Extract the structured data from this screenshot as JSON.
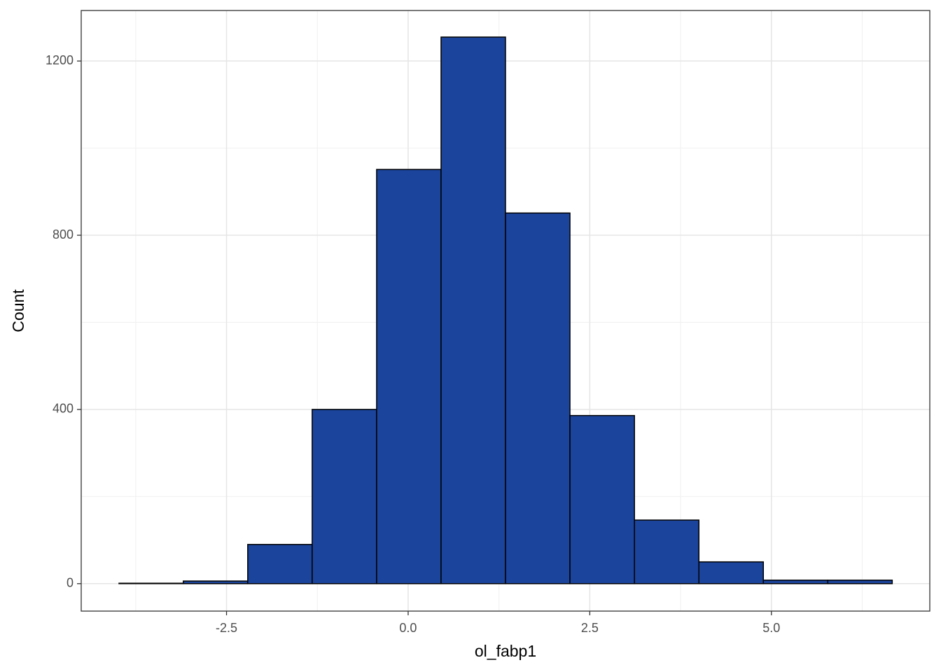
{
  "chart_data": {
    "type": "histogram",
    "x_label": "ol_fabp1",
    "y_label": "Count",
    "bins": [
      -3.98,
      -3.095,
      -2.208,
      -1.321,
      -0.434,
      0.453,
      1.34,
      2.227,
      3.115,
      4.002,
      4.889,
      5.776,
      6.663
    ],
    "counts": [
      1,
      6,
      90,
      400,
      951,
      1255,
      851,
      386,
      146,
      50,
      8,
      8
    ],
    "color": "#1b449c",
    "edge_color": "#000000",
    "xlim": [
      -4.5,
      7.18
    ],
    "ylim": [
      -63,
      1316
    ],
    "xticks": [
      {
        "value": -2.5,
        "label": "-2.5"
      },
      {
        "value": 0,
        "label": "0.0"
      },
      {
        "value": 2.5,
        "label": "2.5"
      },
      {
        "value": 5,
        "label": "5.0"
      }
    ],
    "yticks": [
      0,
      400,
      800,
      1200
    ],
    "x_minor_grid": [
      -3.75,
      -1.25,
      1.25,
      3.75,
      6.25
    ],
    "y_minor_grid": [
      200,
      600,
      1000
    ],
    "grid": true
  }
}
